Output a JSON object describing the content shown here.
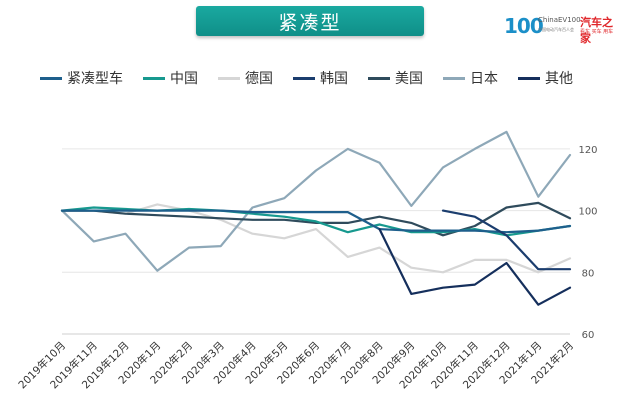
{
  "header": {
    "title": "紧凑型"
  },
  "logo": {
    "mark": "100",
    "ev_text": "ChinaEV100",
    "sub_text": "中国电动汽车百人会",
    "brand": "汽车之家",
    "brand_sub": "看车 买车 用车"
  },
  "chart_data": {
    "type": "line",
    "title": "",
    "xlabel": "",
    "ylabel": "",
    "ylim": [
      60,
      130
    ],
    "yticks": [
      60,
      80,
      100,
      120
    ],
    "grid": "horizontal",
    "legend_position": "top",
    "categories": [
      "2019年10月",
      "2019年11月",
      "2019年12月",
      "2020年1月",
      "2020年2月",
      "2020年3月",
      "2020年4月",
      "2020年5月",
      "2020年6月",
      "2020年7月",
      "2020年8月",
      "2020年9月",
      "2020年10月",
      "2020年11月",
      "2020年12月",
      "2021年1月",
      "2021年2月"
    ],
    "series": [
      {
        "name": "紧凑型车",
        "color": "#1e5f8c",
        "values": [
          100,
          100,
          100,
          100,
          100,
          100,
          99.5,
          99.5,
          99.5,
          99.5,
          94,
          93.5,
          93.5,
          93.5,
          93,
          93.5,
          95
        ]
      },
      {
        "name": "中国",
        "color": "#17998f",
        "values": [
          100,
          101,
          100.5,
          100,
          100.5,
          100,
          99,
          98,
          96.5,
          93,
          95.5,
          93,
          93,
          94,
          92,
          93.5,
          95
        ]
      },
      {
        "name": "德国",
        "color": "#d6d6d6",
        "values": [
          100,
          100,
          99,
          102,
          100,
          97,
          92.5,
          91,
          94,
          85,
          88,
          81.5,
          80,
          84,
          84,
          80,
          84.5
        ]
      },
      {
        "name": "韩国",
        "color": "#1b3d6e",
        "values": [
          null,
          null,
          null,
          null,
          null,
          null,
          null,
          null,
          null,
          null,
          null,
          null,
          100,
          98,
          92,
          81,
          81
        ]
      },
      {
        "name": "美国",
        "color": "#2f4b5c",
        "values": [
          100,
          100,
          99,
          98.5,
          98,
          97.5,
          97,
          97,
          96,
          96,
          98,
          96,
          92,
          95,
          101,
          102.5,
          97.5
        ]
      },
      {
        "name": "日本",
        "color": "#8ea8b8",
        "values": [
          100,
          90,
          92.5,
          80.5,
          88,
          88.5,
          101,
          104,
          113,
          120,
          115.5,
          101.5,
          114,
          120,
          125.5,
          104.5,
          118
        ]
      },
      {
        "name": "其他",
        "color": "#152f5c",
        "values": [
          null,
          null,
          null,
          null,
          null,
          null,
          null,
          null,
          null,
          null,
          94,
          73,
          75,
          76,
          83,
          69.5,
          75
        ]
      }
    ]
  }
}
